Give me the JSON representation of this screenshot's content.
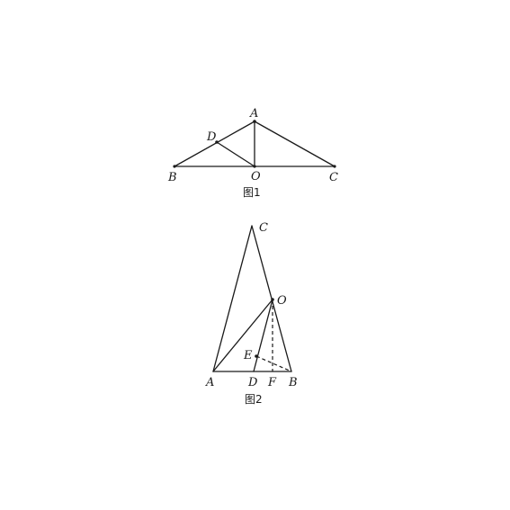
{
  "figure1": {
    "caption": "图1",
    "labels": {
      "A": "A",
      "B": "B",
      "C": "C",
      "D": "D",
      "O": "O"
    }
  },
  "figure2": {
    "caption": "图2",
    "labels": {
      "A": "A",
      "B": "B",
      "C": "C",
      "D": "D",
      "E": "E",
      "F": "F",
      "O": "O"
    }
  }
}
